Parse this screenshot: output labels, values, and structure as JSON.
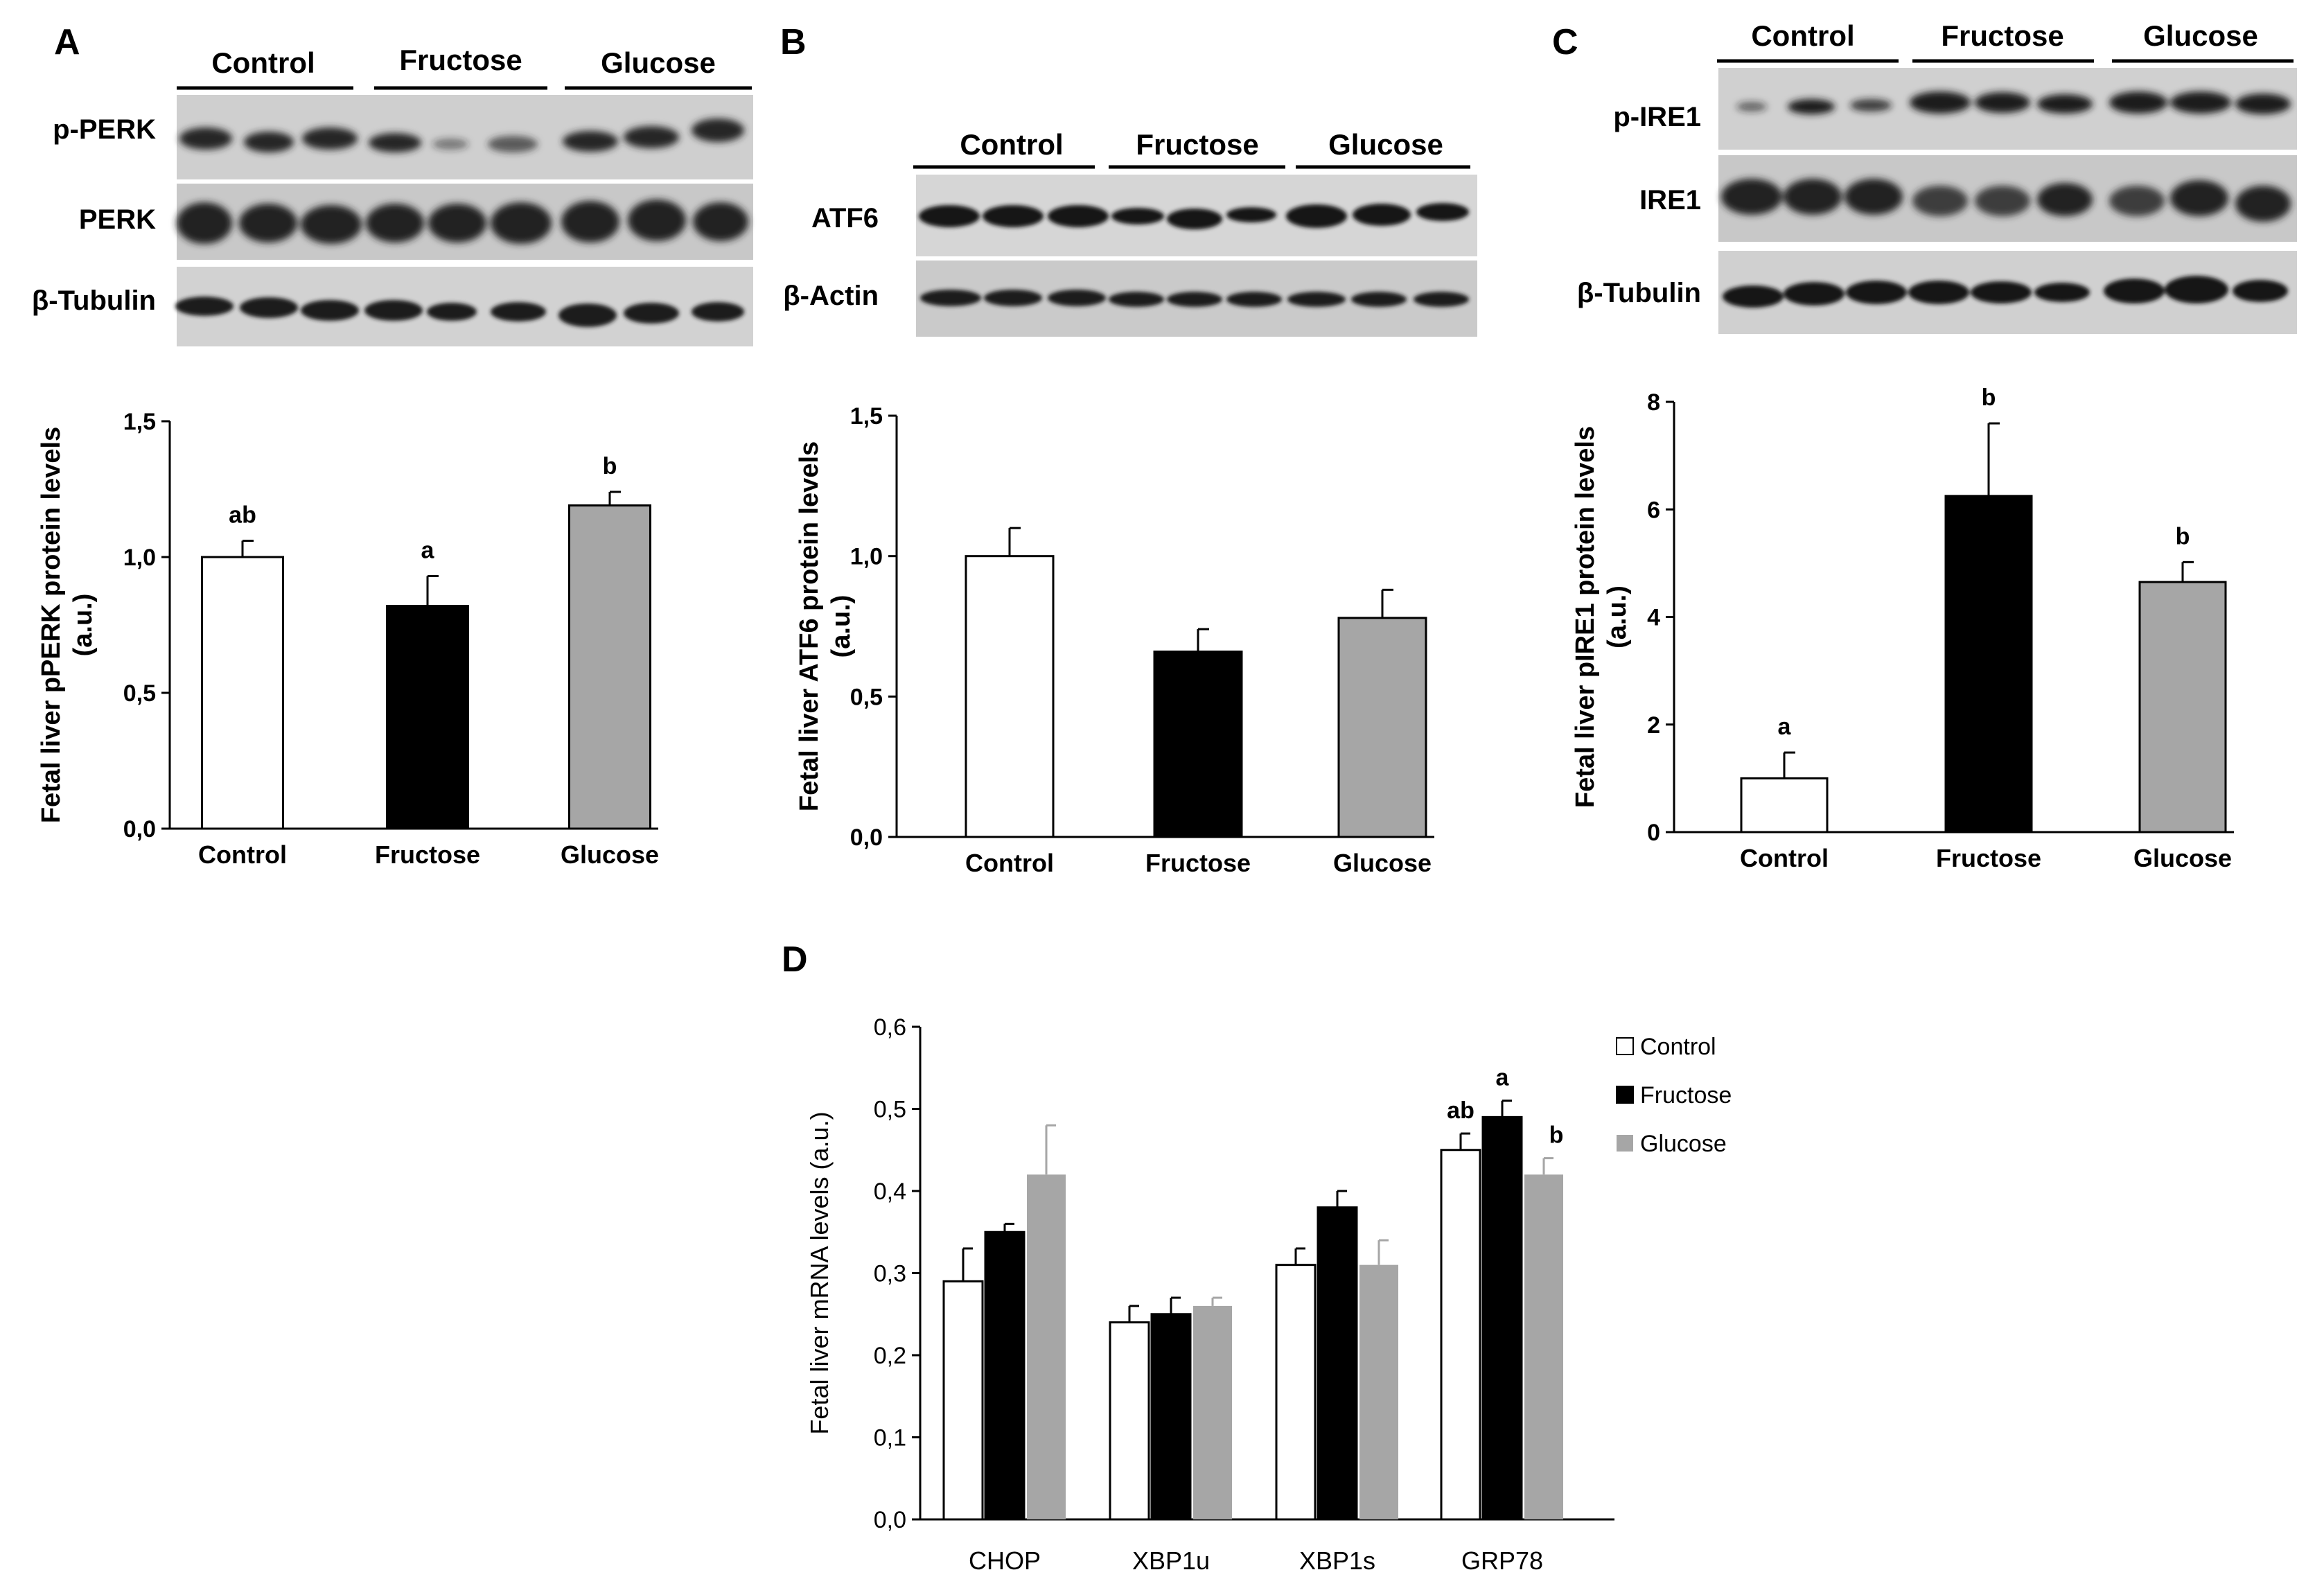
{
  "colors": {
    "control": "#ffffff",
    "fructose": "#000000",
    "glucose": "#a6a6a6",
    "blot_bg": "#cfcfcf",
    "band": "#1e1e1e",
    "axis": "#000000"
  },
  "panels": [
    {
      "letter": "A",
      "group_labels": [
        "Control",
        "Fructose",
        "Glucose"
      ],
      "blot_labels": [
        "p-PERK",
        "PERK",
        "β-Tubulin"
      ]
    },
    {
      "letter": "B",
      "group_labels": [
        "Control",
        "Fructose",
        "Glucose"
      ],
      "blot_labels": [
        "ATF6",
        "β-Actin"
      ]
    },
    {
      "letter": "C",
      "group_labels": [
        "Control",
        "Fructose",
        "Glucose"
      ],
      "blot_labels": [
        "p-IRE1",
        "IRE1",
        "β-Tubulin"
      ]
    },
    {
      "letter": "D"
    }
  ],
  "chart_data": [
    {
      "panel": "A",
      "type": "bar",
      "categories": [
        "Control",
        "Fructose",
        "Glucose"
      ],
      "values": [
        1.0,
        0.82,
        1.19
      ],
      "errors": [
        0.06,
        0.11,
        0.05
      ],
      "significance": [
        "ab",
        "a",
        "b"
      ],
      "ylabel_line1": "Fetal liver pPERK protein levels",
      "ylabel_line2": "(a.u.)",
      "ylim": [
        0,
        1.5
      ],
      "yticks": [
        0,
        0.5,
        1.0,
        1.5
      ],
      "ytick_labels": [
        "0,0",
        "0,5",
        "1,0",
        "1,5"
      ]
    },
    {
      "panel": "B",
      "type": "bar",
      "categories": [
        "Control",
        "Fructose",
        "Glucose"
      ],
      "values": [
        1.0,
        0.66,
        0.78
      ],
      "errors": [
        0.1,
        0.08,
        0.1
      ],
      "significance": [
        "",
        "",
        ""
      ],
      "ylabel_line1": "Fetal liver ATF6 protein levels",
      "ylabel_line2": "(a.u.)",
      "ylim": [
        0,
        1.5
      ],
      "yticks": [
        0,
        0.5,
        1.0,
        1.5
      ],
      "ytick_labels": [
        "0,0",
        "0,5",
        "1,0",
        "1,5"
      ]
    },
    {
      "panel": "C",
      "type": "bar",
      "categories": [
        "Control",
        "Fructose",
        "Glucose"
      ],
      "values": [
        1.0,
        6.25,
        4.65
      ],
      "errors": [
        0.48,
        1.35,
        0.37
      ],
      "significance": [
        "a",
        "b",
        "b"
      ],
      "ylabel_line1": "Fetal liver pIRE1 protein levels",
      "ylabel_line2": "(a.u.)",
      "ylim": [
        0,
        8
      ],
      "yticks": [
        0,
        2,
        4,
        6,
        8
      ],
      "ytick_labels": [
        "0",
        "2",
        "4",
        "6",
        "8"
      ]
    },
    {
      "panel": "D",
      "type": "bar",
      "categories": [
        "CHOP",
        "XBP1u",
        "XBP1s",
        "GRP78"
      ],
      "series": [
        {
          "name": "Control",
          "values": [
            0.29,
            0.24,
            0.31,
            0.45
          ],
          "errors": [
            0.04,
            0.02,
            0.02,
            0.02
          ]
        },
        {
          "name": "Fructose",
          "values": [
            0.35,
            0.25,
            0.38,
            0.49
          ],
          "errors": [
            0.01,
            0.02,
            0.02,
            0.02
          ]
        },
        {
          "name": "Glucose",
          "values": [
            0.42,
            0.26,
            0.31,
            0.42
          ],
          "errors": [
            0.06,
            0.01,
            0.03,
            0.02
          ]
        }
      ],
      "group_significance": {
        "category": "GRP78",
        "labels": [
          "ab",
          "a",
          "b"
        ]
      },
      "ylabel": "Fetal liver mRNA levels (a.u.)",
      "ylim": [
        0,
        0.6
      ],
      "yticks": [
        0,
        0.1,
        0.2,
        0.3,
        0.4,
        0.5,
        0.6
      ],
      "ytick_labels": [
        "0,0",
        "0,1",
        "0,2",
        "0,3",
        "0,4",
        "0,5",
        "0,6"
      ],
      "legend_position": "top-right"
    }
  ]
}
